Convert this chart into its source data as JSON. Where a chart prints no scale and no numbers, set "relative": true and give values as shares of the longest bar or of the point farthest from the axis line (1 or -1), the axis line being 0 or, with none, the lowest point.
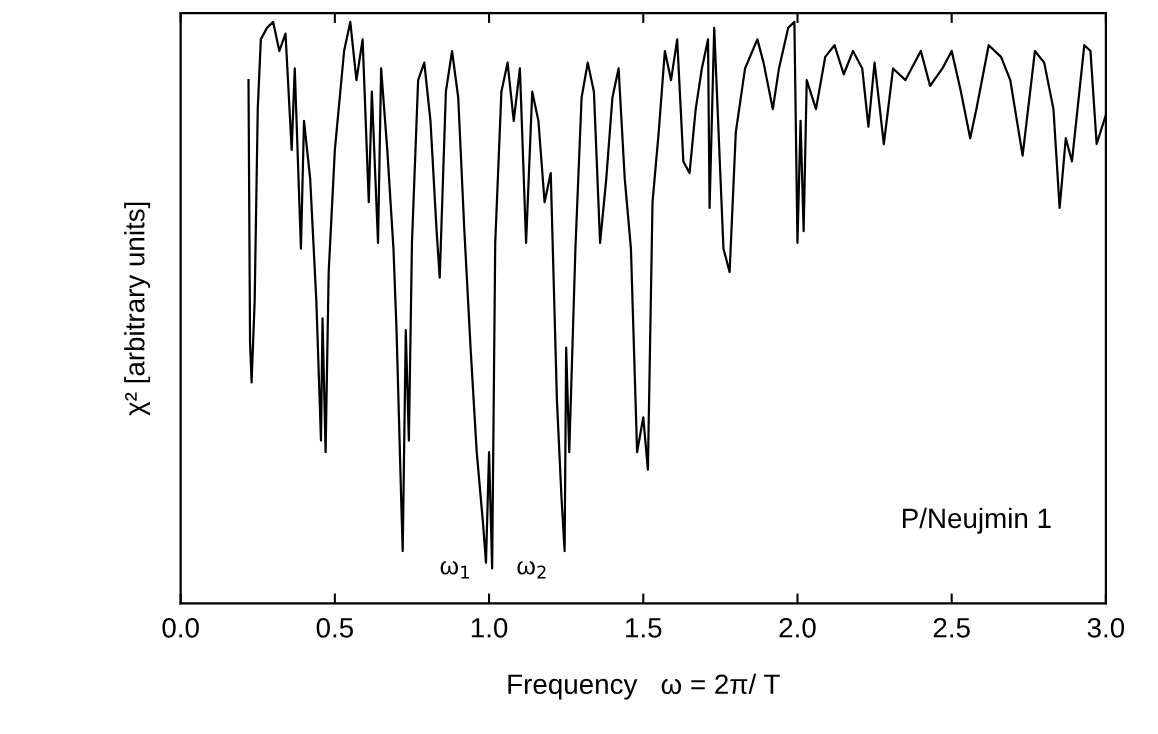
{
  "chart_data": {
    "type": "line",
    "relative": true,
    "xlabel": "Frequency   ω = 2π/ T",
    "ylabel": "χ² [arbitrary units]",
    "xlim": [
      0.0,
      3.0
    ],
    "xticks": [
      {
        "value": 0,
        "label": "0.0"
      },
      0.5,
      {
        "value": 1,
        "label": "1.0"
      },
      1.5,
      {
        "value": 2,
        "label": "2.0"
      },
      2.5,
      {
        "value": 3,
        "label": "3.0"
      }
    ],
    "grid": false,
    "legend": false,
    "marker": "none",
    "line_style": "solid",
    "annotations": [
      "ω$_{1}$",
      "ω$_{2}$",
      "P/Neujmin 1"
    ],
    "series": [
      {
        "color": "#000000",
        "x": [
          0.22,
          0.225,
          0.23,
          0.24,
          0.25,
          0.26,
          0.28,
          0.3,
          0.32,
          0.34,
          0.36,
          0.37,
          0.39,
          0.4,
          0.42,
          0.44,
          0.455,
          0.46,
          0.47,
          0.48,
          0.5,
          0.53,
          0.55,
          0.57,
          0.59,
          0.61,
          0.62,
          0.64,
          0.65,
          0.67,
          0.69,
          0.7,
          0.715,
          0.72,
          0.73,
          0.74,
          0.75,
          0.77,
          0.79,
          0.81,
          0.83,
          0.84,
          0.86,
          0.88,
          0.9,
          0.92,
          0.94,
          0.96,
          0.98,
          0.99,
          1.0,
          1.01,
          1.02,
          1.04,
          1.06,
          1.08,
          1.1,
          1.12,
          1.14,
          1.16,
          1.18,
          1.2,
          1.22,
          1.235,
          1.245,
          1.25,
          1.26,
          1.28,
          1.3,
          1.32,
          1.34,
          1.36,
          1.38,
          1.4,
          1.42,
          1.44,
          1.46,
          1.48,
          1.5,
          1.515,
          1.53,
          1.55,
          1.57,
          1.59,
          1.61,
          1.63,
          1.65,
          1.67,
          1.69,
          1.71,
          1.715,
          1.73,
          1.76,
          1.78,
          1.8,
          1.83,
          1.87,
          1.89,
          1.92,
          1.94,
          1.97,
          1.99,
          2.0,
          2.01,
          2.02,
          2.03,
          2.06,
          2.09,
          2.12,
          2.15,
          2.18,
          2.21,
          2.23,
          2.25,
          2.28,
          2.31,
          2.35,
          2.4,
          2.43,
          2.47,
          2.5,
          2.53,
          2.56,
          2.58,
          2.62,
          2.66,
          2.69,
          2.73,
          2.77,
          2.8,
          2.83,
          2.85,
          2.87,
          2.89,
          2.93,
          2.95,
          2.97,
          3.0
        ],
        "values": [
          0.9,
          0.45,
          0.38,
          0.52,
          0.85,
          0.97,
          0.99,
          1.0,
          0.95,
          0.98,
          0.78,
          0.92,
          0.61,
          0.83,
          0.73,
          0.52,
          0.28,
          0.49,
          0.26,
          0.57,
          0.78,
          0.95,
          1.0,
          0.9,
          0.97,
          0.69,
          0.88,
          0.62,
          0.92,
          0.78,
          0.61,
          0.47,
          0.18,
          0.09,
          0.47,
          0.28,
          0.62,
          0.9,
          0.93,
          0.83,
          0.64,
          0.56,
          0.88,
          0.95,
          0.87,
          0.64,
          0.44,
          0.26,
          0.14,
          0.07,
          0.26,
          0.06,
          0.62,
          0.88,
          0.93,
          0.83,
          0.92,
          0.62,
          0.88,
          0.83,
          0.69,
          0.74,
          0.35,
          0.18,
          0.09,
          0.44,
          0.26,
          0.61,
          0.87,
          0.93,
          0.88,
          0.62,
          0.73,
          0.87,
          0.92,
          0.73,
          0.61,
          0.26,
          0.32,
          0.23,
          0.69,
          0.81,
          0.95,
          0.9,
          0.97,
          0.76,
          0.74,
          0.85,
          0.92,
          0.97,
          0.68,
          0.99,
          0.61,
          0.57,
          0.81,
          0.92,
          0.97,
          0.93,
          0.85,
          0.92,
          0.99,
          1.0,
          0.62,
          0.83,
          0.64,
          0.9,
          0.85,
          0.94,
          0.96,
          0.91,
          0.95,
          0.92,
          0.82,
          0.93,
          0.79,
          0.92,
          0.9,
          0.95,
          0.89,
          0.92,
          0.95,
          0.88,
          0.8,
          0.85,
          0.96,
          0.94,
          0.9,
          0.77,
          0.95,
          0.93,
          0.85,
          0.68,
          0.8,
          0.76,
          0.96,
          0.95,
          0.79,
          0.84
        ]
      }
    ]
  }
}
